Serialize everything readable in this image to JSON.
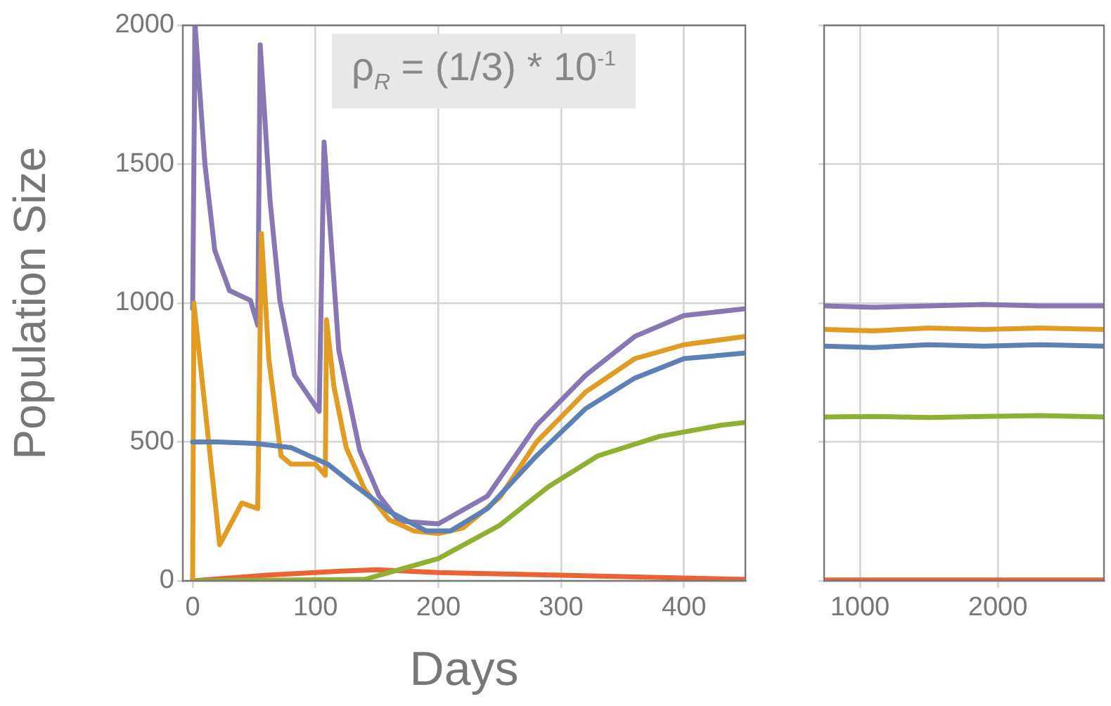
{
  "chart_data": [
    {
      "type": "line",
      "xlabel": "Days",
      "ylabel": "Population Size",
      "annotations": [
        "ρ$_{R}$ = (1/3) * 10$^{-1}$"
      ],
      "xlim": [
        -8,
        450
      ],
      "ylim": [
        0,
        2000
      ],
      "xticks": [
        0,
        100,
        200,
        300,
        400
      ],
      "yticks": [
        0,
        500,
        1000,
        1500,
        2000
      ],
      "grid": true,
      "line_style": "solid",
      "marker": "none",
      "series": [
        {
          "color": "#5e81b5",
          "x": [
            0,
            20,
            50,
            80,
            110,
            130,
            160,
            190,
            210,
            240,
            280,
            320,
            360,
            400,
            450
          ],
          "values": [
            500,
            500,
            495,
            480,
            420,
            350,
            250,
            180,
            180,
            260,
            450,
            620,
            730,
            800,
            820
          ]
        },
        {
          "color": "#e19c24",
          "x": [
            0,
            1,
            22,
            40,
            53,
            56,
            62,
            72,
            80,
            100,
            108,
            109,
            115,
            125,
            140,
            160,
            180,
            200,
            220,
            250,
            280,
            320,
            360,
            400,
            450
          ],
          "values": [
            0,
            1000,
            130,
            280,
            260,
            1250,
            800,
            450,
            420,
            420,
            380,
            940,
            700,
            480,
            330,
            220,
            180,
            170,
            190,
            300,
            500,
            680,
            800,
            850,
            880
          ]
        },
        {
          "color": "#8fb032",
          "x": [
            0,
            140,
            160,
            200,
            250,
            290,
            330,
            380,
            430,
            450
          ],
          "values": [
            0,
            5,
            30,
            80,
            200,
            340,
            450,
            520,
            560,
            570
          ]
        },
        {
          "color": "#eb6235",
          "x": [
            0,
            60,
            120,
            150,
            200,
            300,
            400,
            450
          ],
          "values": [
            0,
            20,
            35,
            40,
            30,
            20,
            10,
            5
          ]
        },
        {
          "color": "#8778b3",
          "x": [
            0,
            2,
            10,
            18,
            30,
            47,
            53,
            55,
            63,
            71,
            83,
            103,
            107,
            119,
            136,
            152,
            168,
            200,
            240,
            280,
            320,
            360,
            400,
            450
          ],
          "values": [
            980,
            2000,
            1500,
            1190,
            1045,
            1010,
            920,
            1930,
            1370,
            1010,
            740,
            610,
            1580,
            830,
            470,
            305,
            215,
            205,
            305,
            560,
            740,
            880,
            955,
            980
          ]
        }
      ]
    },
    {
      "type": "line",
      "xlim": [
        740,
        2770
      ],
      "ylim": [
        0,
        2000
      ],
      "xticks": [
        1000,
        2000
      ],
      "yticks": [
        0,
        500,
        1000,
        1500,
        2000
      ],
      "grid": true,
      "tick_labels": "x",
      "line_style": "solid",
      "marker": "none",
      "series": [
        {
          "color": "#5e81b5",
          "x": [
            740,
            1100,
            1500,
            1900,
            2300,
            2770
          ],
          "values": [
            845,
            840,
            850,
            845,
            850,
            845
          ]
        },
        {
          "color": "#e19c24",
          "x": [
            740,
            1100,
            1500,
            1900,
            2300,
            2770
          ],
          "values": [
            905,
            900,
            910,
            905,
            910,
            905
          ]
        },
        {
          "color": "#8fb032",
          "x": [
            740,
            1100,
            1500,
            1900,
            2300,
            2770
          ],
          "values": [
            590,
            592,
            588,
            592,
            595,
            590
          ]
        },
        {
          "color": "#eb6235",
          "x": [
            740,
            1100,
            1500,
            1900,
            2300,
            2770
          ],
          "values": [
            3,
            3,
            3,
            3,
            3,
            3
          ]
        },
        {
          "color": "#8778b3",
          "x": [
            740,
            1100,
            1500,
            1900,
            2300,
            2770
          ],
          "values": [
            990,
            985,
            990,
            995,
            990,
            990
          ]
        }
      ]
    }
  ]
}
